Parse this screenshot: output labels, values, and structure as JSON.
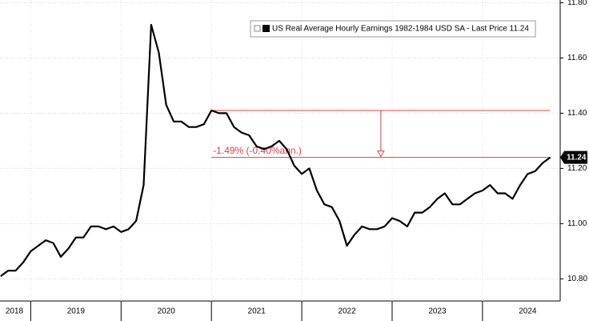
{
  "chart_data": {
    "type": "line",
    "x": [
      2018.667,
      2018.75,
      2018.833,
      2018.917,
      2019,
      2019.083,
      2019.167,
      2019.25,
      2019.333,
      2019.417,
      2019.5,
      2019.583,
      2019.667,
      2019.75,
      2019.833,
      2019.917,
      2020,
      2020.083,
      2020.167,
      2020.25,
      2020.333,
      2020.417,
      2020.5,
      2020.583,
      2020.667,
      2020.75,
      2020.833,
      2020.917,
      2021,
      2021.083,
      2021.167,
      2021.25,
      2021.333,
      2021.417,
      2021.5,
      2021.583,
      2021.667,
      2021.75,
      2021.833,
      2021.917,
      2022,
      2022.083,
      2022.167,
      2022.25,
      2022.333,
      2022.417,
      2022.5,
      2022.583,
      2022.667,
      2022.75,
      2022.833,
      2022.917,
      2023,
      2023.083,
      2023.167,
      2023.25,
      2023.333,
      2023.417,
      2023.5,
      2023.583,
      2023.667,
      2023.75,
      2023.833,
      2023.917,
      2024,
      2024.083,
      2024.167,
      2024.25,
      2024.333,
      2024.417,
      2024.5,
      2024.583,
      2024.667,
      2024.75
    ],
    "series": [
      {
        "name": "US Real Average Hourly Earnings 1982-1984 USD SA - Last Price 11.24",
        "color": "#000000",
        "values": [
          10.81,
          10.83,
          10.83,
          10.86,
          10.9,
          10.92,
          10.94,
          10.93,
          10.88,
          10.91,
          10.95,
          10.95,
          10.99,
          10.99,
          10.98,
          10.99,
          10.97,
          10.98,
          11.01,
          11.14,
          11.72,
          11.62,
          11.43,
          11.37,
          11.37,
          11.35,
          11.35,
          11.36,
          11.41,
          11.4,
          11.4,
          11.35,
          11.33,
          11.32,
          11.28,
          11.27,
          11.28,
          11.3,
          11.27,
          11.21,
          11.18,
          11.2,
          11.12,
          11.07,
          11.06,
          11.01,
          10.92,
          10.96,
          10.99,
          10.98,
          10.98,
          10.99,
          11.02,
          11.01,
          10.99,
          11.04,
          11.04,
          11.06,
          11.09,
          11.11,
          11.07,
          11.07,
          11.09,
          11.11,
          11.12,
          11.14,
          11.11,
          11.11,
          11.09,
          11.14,
          11.18,
          11.19,
          11.22,
          11.24
        ]
      }
    ],
    "xlim": [
      2018.66,
      2024.86
    ],
    "xticks": [
      {
        "value": 2018.5,
        "label": "2018"
      },
      {
        "value": 2019.5,
        "label": "2019"
      },
      {
        "value": 2020.5,
        "label": "2020"
      },
      {
        "value": 2021.5,
        "label": "2021"
      },
      {
        "value": 2022.5,
        "label": "2022"
      },
      {
        "value": 2023.5,
        "label": "2023"
      },
      {
        "value": 2024.5,
        "label": "2024"
      }
    ],
    "ylim": [
      10.72,
      11.81
    ],
    "yticks": [
      {
        "value": 10.8,
        "label": "10.80"
      },
      {
        "value": 11.0,
        "label": "11.00"
      },
      {
        "value": 11.2,
        "label": "11.20"
      },
      {
        "value": 11.4,
        "label": "11.40"
      },
      {
        "value": 11.6,
        "label": "11.60"
      },
      {
        "value": 11.8,
        "label": "11.80"
      }
    ],
    "reference_lines": {
      "x_start": 2021,
      "levels": [
        11.41,
        11.24
      ],
      "color": "#e0404a",
      "label": "-1.49% (-0.40%ann.)"
    },
    "grid": true
  }
}
